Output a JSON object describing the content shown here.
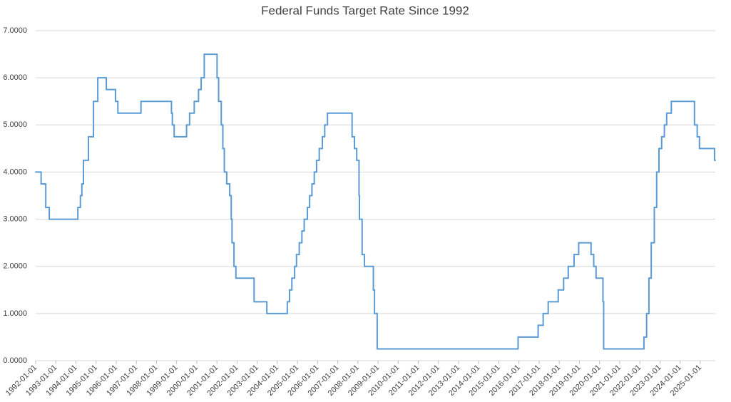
{
  "chart_data": {
    "type": "step-line",
    "title": "Federal Funds Target Rate Since 1992",
    "x": [
      "1992-01-01",
      "1992-04-09",
      "1992-07-02",
      "1992-09-04",
      "1994-02-04",
      "1994-03-22",
      "1994-04-18",
      "1994-05-17",
      "1994-08-16",
      "1994-11-15",
      "1995-02-01",
      "1995-07-06",
      "1995-12-19",
      "1996-01-31",
      "1997-03-25",
      "1998-09-29",
      "1998-10-15",
      "1998-11-17",
      "1999-06-30",
      "1999-08-24",
      "1999-11-16",
      "2000-02-02",
      "2000-03-21",
      "2000-05-16",
      "2001-01-03",
      "2001-01-31",
      "2001-03-20",
      "2001-04-18",
      "2001-05-15",
      "2001-06-27",
      "2001-08-21",
      "2001-09-17",
      "2001-10-02",
      "2001-11-06",
      "2001-12-11",
      "2002-11-06",
      "2003-06-25",
      "2004-06-30",
      "2004-08-10",
      "2004-09-21",
      "2004-11-10",
      "2004-12-14",
      "2005-02-02",
      "2005-03-22",
      "2005-05-03",
      "2005-06-30",
      "2005-08-09",
      "2005-09-20",
      "2005-11-01",
      "2005-12-13",
      "2006-01-31",
      "2006-03-28",
      "2006-05-10",
      "2006-06-29",
      "2007-09-18",
      "2007-10-31",
      "2007-12-11",
      "2008-01-22",
      "2008-01-30",
      "2008-03-18",
      "2008-04-30",
      "2008-10-08",
      "2008-10-29",
      "2008-12-16",
      "2015-12-16",
      "2016-12-14",
      "2017-03-15",
      "2017-06-14",
      "2017-12-13",
      "2018-03-21",
      "2018-06-13",
      "2018-09-26",
      "2018-12-19",
      "2019-07-31",
      "2019-09-18",
      "2019-10-30",
      "2020-03-03",
      "2020-03-16",
      "2022-03-16",
      "2022-05-04",
      "2022-06-15",
      "2022-07-27",
      "2022-09-21",
      "2022-11-02",
      "2022-12-14",
      "2023-02-01",
      "2023-03-22",
      "2023-05-03",
      "2023-07-26",
      "2024-09-18",
      "2024-11-07",
      "2024-12-18",
      "2025-09-17"
    ],
    "series": [
      {
        "color": "#5b9bd5",
        "values": [
          4.0,
          3.75,
          3.25,
          3.0,
          3.25,
          3.5,
          3.75,
          4.25,
          4.75,
          5.5,
          6.0,
          5.75,
          5.5,
          5.25,
          5.5,
          5.25,
          5.0,
          4.75,
          5.0,
          5.25,
          5.5,
          5.75,
          6.0,
          6.5,
          6.0,
          5.5,
          5.0,
          4.5,
          4.0,
          3.75,
          3.5,
          3.0,
          2.5,
          2.0,
          1.75,
          1.25,
          1.0,
          1.25,
          1.5,
          1.75,
          2.0,
          2.25,
          2.5,
          2.75,
          3.0,
          3.25,
          3.5,
          3.75,
          4.0,
          4.25,
          4.5,
          4.75,
          5.0,
          5.25,
          4.75,
          4.5,
          4.25,
          3.5,
          3.0,
          2.25,
          2.0,
          1.5,
          1.0,
          0.25,
          0.5,
          0.75,
          1.0,
          1.25,
          1.5,
          1.75,
          2.0,
          2.25,
          2.5,
          2.25,
          2.0,
          1.75,
          1.25,
          0.25,
          0.5,
          1.0,
          1.75,
          2.5,
          3.25,
          4.0,
          4.5,
          4.75,
          5.0,
          5.25,
          5.5,
          5.0,
          4.75,
          4.5,
          4.25
        ]
      }
    ],
    "xlim": [
      "1992-01-01",
      "2025-10-01"
    ],
    "xticks": [
      "1992-01-01",
      "1993-01-01",
      "1994-01-01",
      "1995-01-01",
      "1996-01-01",
      "1997-01-01",
      "1998-01-01",
      "1999-01-01",
      "2000-01-01",
      "2001-01-01",
      "2002-01-01",
      "2003-01-01",
      "2004-01-01",
      "2005-01-01",
      "2006-01-01",
      "2007-01-01",
      "2008-01-01",
      "2009-01-01",
      "2010-01-01",
      "2011-01-01",
      "2012-01-01",
      "2013-01-01",
      "2014-01-01",
      "2015-01-01",
      "2016-01-01",
      "2017-01-01",
      "2018-01-01",
      "2019-01-01",
      "2020-01-01",
      "2021-01-01",
      "2022-01-01",
      "2023-01-01",
      "2024-01-01",
      "2025-01-01"
    ],
    "ylim": [
      0,
      7
    ],
    "yticks": [
      {
        "value": 0,
        "label": "0.0000"
      },
      {
        "value": 1,
        "label": "1.0000"
      },
      {
        "value": 2,
        "label": "2.0000"
      },
      {
        "value": 3,
        "label": "3.0000"
      },
      {
        "value": 4,
        "label": "4.0000"
      },
      {
        "value": 5,
        "label": "5.0000"
      },
      {
        "value": 6,
        "label": "6.0000"
      },
      {
        "value": 7,
        "label": "7.0000"
      }
    ],
    "grid": true
  }
}
